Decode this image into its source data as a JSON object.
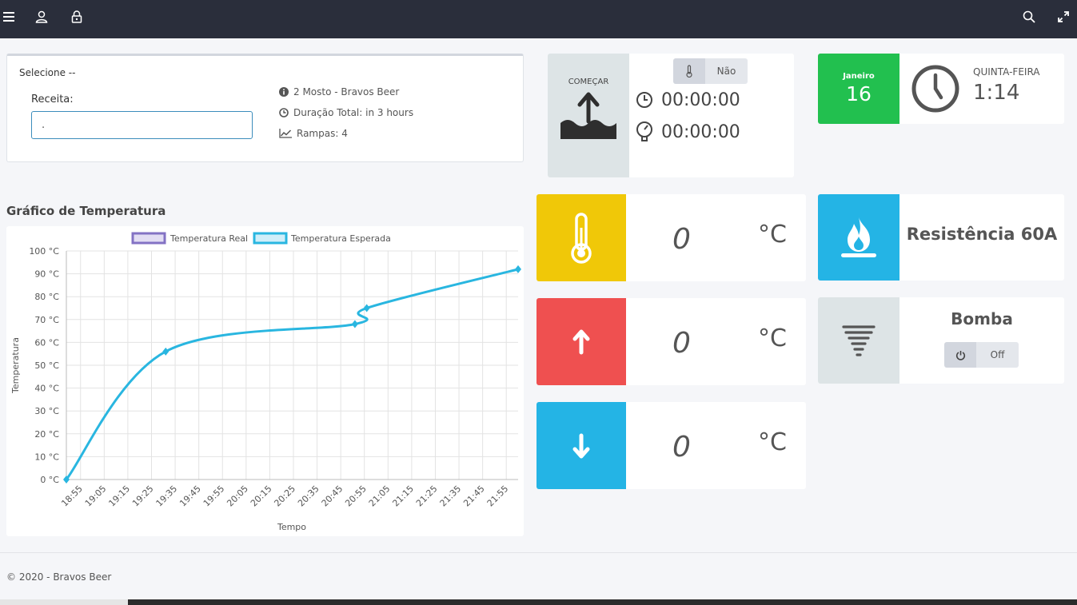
{
  "topbar": {
    "icons": [
      "menu-icon",
      "user-icon",
      "lock-icon",
      "search-icon",
      "expand-icon"
    ]
  },
  "recipe": {
    "select_label": "Selecione --",
    "field_label": "Receita:",
    "field_value": ".",
    "info": {
      "name": "2 Mosto - Bravos Beer",
      "duration": "Duração Total: in 3 hours",
      "ramps": "Rampas: 4"
    }
  },
  "chart_section": {
    "title": "Gráfico de Temperatura"
  },
  "chart_data": {
    "type": "line",
    "title": "",
    "xlabel": "Tempo",
    "ylabel": "Temperatura",
    "legend_placement": "top",
    "grid": true,
    "legend": [
      "Temperatura Real",
      "Temperatura Esperada"
    ],
    "y_ticks": [
      "0 °C",
      "10 °C",
      "20 °C",
      "30 °C",
      "40 °C",
      "50 °C",
      "60 °C",
      "70 °C",
      "80 °C",
      "90 °C",
      "100 °C"
    ],
    "x_ticks": [
      "18:55",
      "19:05",
      "19:15",
      "19:25",
      "19:35",
      "19:45",
      "19:55",
      "20:05",
      "20:15",
      "20:25",
      "20:35",
      "20:45",
      "20:55",
      "21:05",
      "21:15",
      "21:25",
      "21:35",
      "21:45",
      "21:55"
    ],
    "ylim": [
      0,
      100
    ],
    "xlim": [
      "18:49",
      "22:00"
    ],
    "series": [
      {
        "name": "Temperatura Real",
        "color": "#8372c4",
        "x": [],
        "values": []
      },
      {
        "name": "Temperatura Esperada",
        "color": "#29b6e0",
        "x": [
          "18:49",
          "19:31",
          "20:51",
          "20:56",
          "22:00"
        ],
        "values": [
          0,
          56,
          68,
          75,
          92
        ]
      }
    ]
  },
  "start_tile": {
    "label": "COMEÇAR",
    "toggle_value": "Não",
    "timer1": "00:00:00",
    "timer2": "00:00:00",
    "color": "#dde4e6"
  },
  "date_tile": {
    "month": "Janeiro",
    "day": "16",
    "weekday": "QUINTA-FEIRA",
    "time": "1:14",
    "color": "#22c04f"
  },
  "temp_tiles": [
    {
      "value": "0",
      "unit": "°C",
      "color": "#f0c808",
      "icon": "thermometer-icon"
    },
    {
      "value": "0",
      "unit": "°C",
      "color": "#ef5050",
      "icon": "arrow-up-icon"
    },
    {
      "value": "0",
      "unit": "°C",
      "color": "#24b4e5",
      "icon": "arrow-down-icon"
    }
  ],
  "resistance_tile": {
    "label": "Resistência 60A",
    "color": "#24b4e5"
  },
  "pump_tile": {
    "label": "Bomba",
    "toggle_value": "Off",
    "color": "#dde4e6"
  },
  "footer": {
    "text": "© 2020 - Bravos Beer"
  }
}
